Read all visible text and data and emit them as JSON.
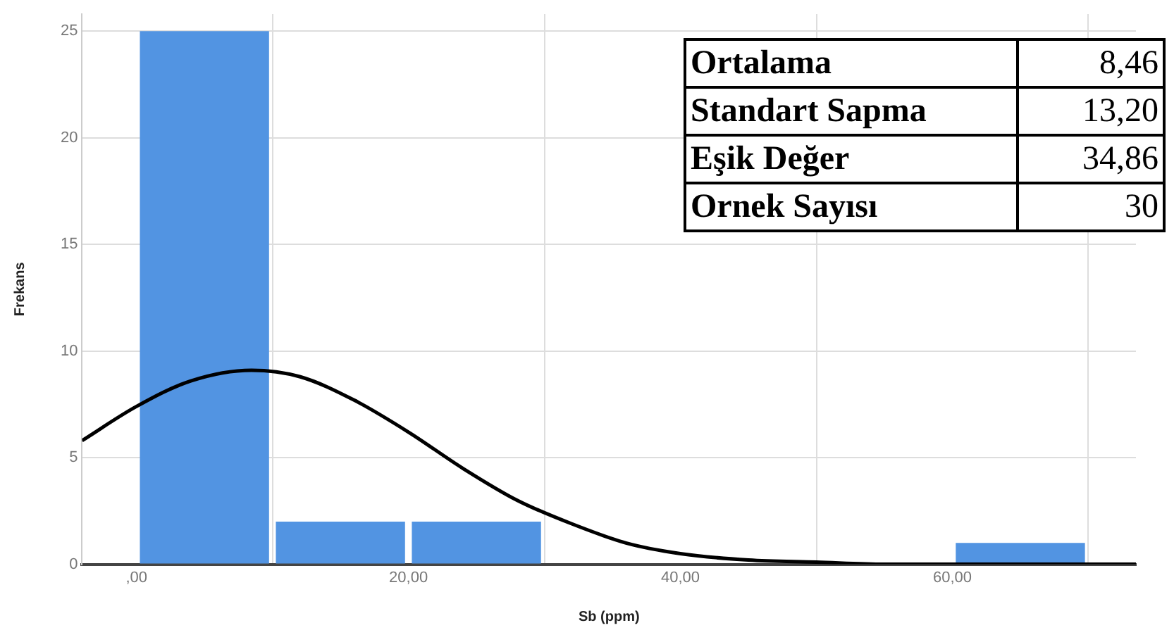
{
  "chart_data": {
    "type": "histogram",
    "xlabel": "Sb (ppm)",
    "ylabel": "Frekans",
    "bins": [
      0,
      10,
      20,
      30,
      40,
      50,
      60,
      70
    ],
    "values": [
      25,
      2,
      2,
      0,
      0,
      0,
      1
    ],
    "color": "#5294e2",
    "series": [
      {
        "type": "line",
        "color": "#000000",
        "marker": "none",
        "line_style": "solid",
        "x": [
          -4,
          0,
          4,
          8.46,
          12,
          16,
          20,
          24,
          28,
          32,
          36,
          40,
          45,
          50,
          55,
          60,
          73.5
        ],
        "values": [
          5.8,
          7.4,
          8.6,
          9.1,
          8.8,
          7.7,
          6.2,
          4.5,
          3.0,
          1.9,
          1.0,
          0.5,
          0.2,
          0.1,
          0,
          0,
          0
        ]
      }
    ],
    "xlim": [
      -4,
      73.5
    ],
    "xticks": [
      {
        "value": 0,
        "label": ",00"
      },
      {
        "value": 20,
        "label": "20,00"
      },
      {
        "value": 40,
        "label": "40,00"
      },
      {
        "value": 60,
        "label": "60,00"
      }
    ],
    "ylim": [
      0,
      25.8
    ],
    "yticks": [
      0,
      5,
      10,
      15,
      20,
      25
    ],
    "grid": true,
    "annotations": [
      "Ortalama",
      "8,46",
      "Standart Sapma",
      "13,20",
      "Eşik Değer",
      "34,86",
      "Ornek Sayısı",
      "30"
    ]
  }
}
